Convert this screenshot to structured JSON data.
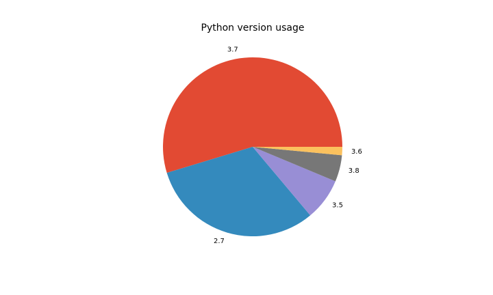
{
  "chart_data": {
    "type": "pie",
    "title": "Python version usage",
    "categories": [
      "3.7",
      "2.7",
      "3.5",
      "3.8",
      "3.6"
    ],
    "values": [
      54.7,
      31.4,
      7.6,
      4.8,
      1.5
    ],
    "colors": [
      "#E24A33",
      "#348ABD",
      "#988ED5",
      "#777777",
      "#FBC15E"
    ]
  }
}
